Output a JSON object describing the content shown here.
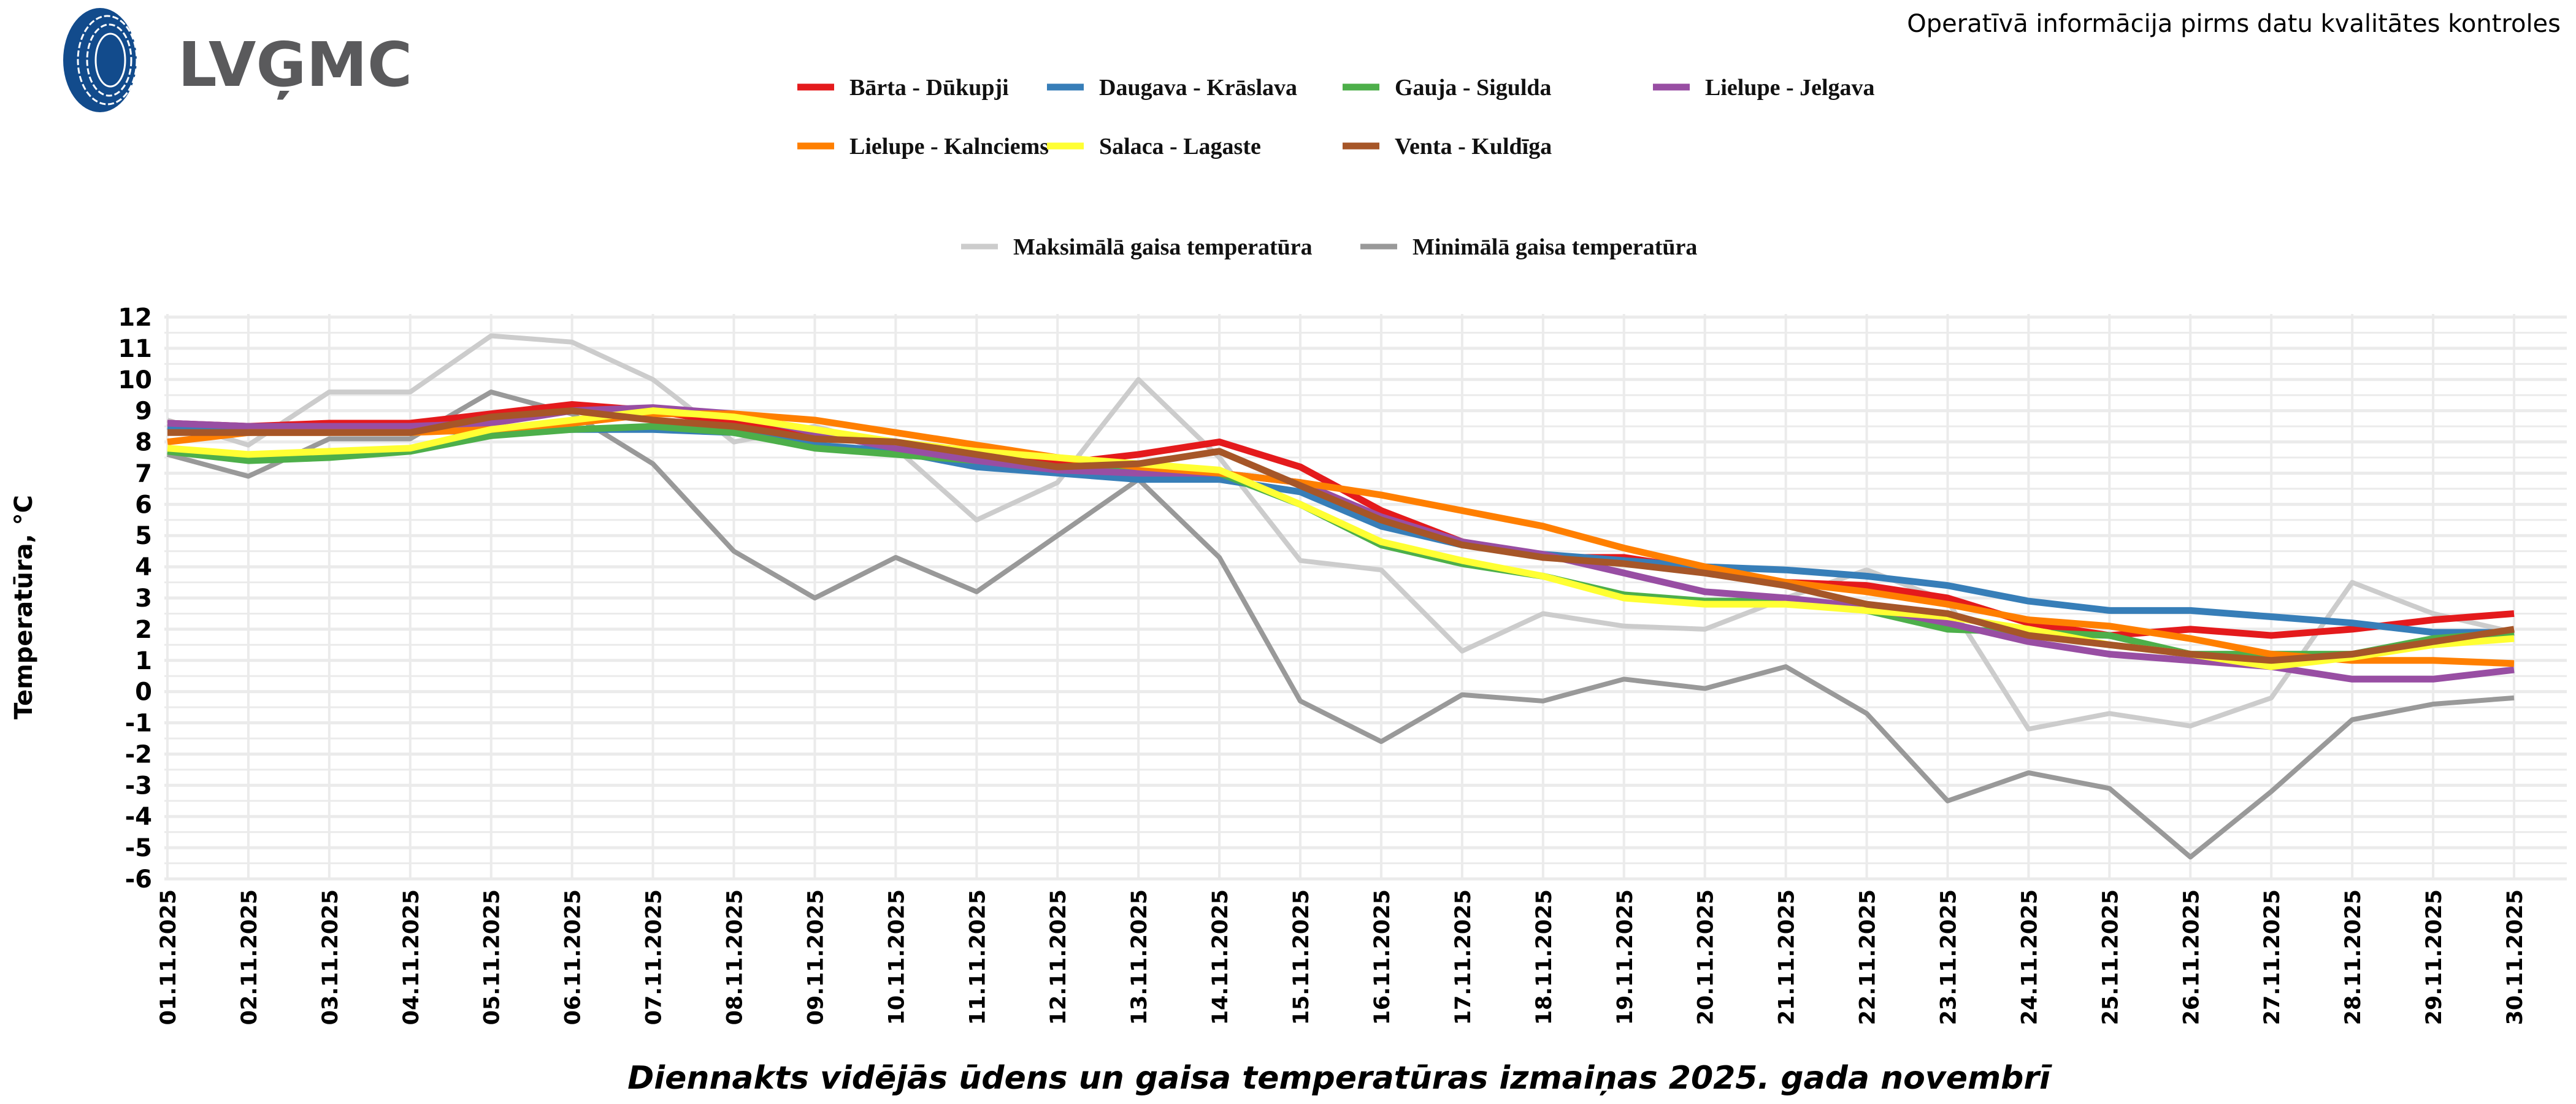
{
  "header": {
    "logo_text": "LVĢMC",
    "note": "Operatīvā informācija pirms datu kvalitātes kontroles"
  },
  "chart_data": {
    "type": "line",
    "title": "Diennakts vidējās ūdens un gaisa temperatūras izmaiņas 2025. gada novembrī",
    "xlabel": "",
    "ylabel": "Temperatūra, °C",
    "ylim": [
      -6,
      12
    ],
    "yticks": [
      "-6",
      "-5",
      "-4",
      "-3",
      "-2",
      "-1",
      "0",
      "1",
      "2",
      "3",
      "4",
      "5",
      "6",
      "7",
      "8",
      "9",
      "10",
      "11",
      "12"
    ],
    "grid": true,
    "legend_placement": "top",
    "categories": [
      "01.11.2025",
      "02.11.2025",
      "03.11.2025",
      "04.11.2025",
      "05.11.2025",
      "06.11.2025",
      "07.11.2025",
      "08.11.2025",
      "09.11.2025",
      "10.11.2025",
      "11.11.2025",
      "12.11.2025",
      "13.11.2025",
      "14.11.2025",
      "15.11.2025",
      "16.11.2025",
      "17.11.2025",
      "18.11.2025",
      "19.11.2025",
      "20.11.2025",
      "21.11.2025",
      "22.11.2025",
      "23.11.2025",
      "24.11.2025",
      "25.11.2025",
      "26.11.2025",
      "27.11.2025",
      "28.11.2025",
      "29.11.2025",
      "30.11.2025"
    ],
    "air_series": [
      {
        "name": "Maksimālā gaisa temperatūra",
        "color": "#cccccc",
        "values": [
          8.7,
          7.9,
          9.6,
          9.6,
          11.4,
          11.2,
          10.0,
          8.0,
          8.5,
          7.8,
          5.5,
          6.7,
          10.0,
          7.5,
          4.2,
          3.9,
          1.3,
          2.5,
          2.1,
          2.0,
          3.0,
          3.9,
          2.9,
          -1.2,
          -0.7,
          -1.1,
          -0.2,
          3.5,
          2.5,
          1.9
        ]
      },
      {
        "name": "Minimālā gaisa temperatūra",
        "color": "#999999",
        "values": [
          7.6,
          6.9,
          8.1,
          8.1,
          9.6,
          8.9,
          7.3,
          4.5,
          3.0,
          4.3,
          3.2,
          5.0,
          6.8,
          4.3,
          -0.3,
          -1.6,
          -0.1,
          -0.3,
          0.4,
          0.1,
          0.8,
          -0.7,
          -3.5,
          -2.6,
          -3.1,
          -5.3,
          -3.2,
          -0.9,
          -0.4,
          -0.2
        ]
      }
    ],
    "series": [
      {
        "name": "Bārta - Dūkupji",
        "color": "#e41a1c",
        "values": [
          8.6,
          8.5,
          8.6,
          8.6,
          8.9,
          9.2,
          9.0,
          8.6,
          8.2,
          7.9,
          7.6,
          7.3,
          7.6,
          8.0,
          7.2,
          5.8,
          4.8,
          4.3,
          4.3,
          3.9,
          3.5,
          3.4,
          3.0,
          2.2,
          1.8,
          2.0,
          1.8,
          2.0,
          2.3,
          2.5
        ]
      },
      {
        "name": "Daugava - Krāslava",
        "color": "#377eb8",
        "values": [
          8.5,
          8.3,
          8.4,
          8.4,
          8.3,
          8.4,
          8.4,
          8.3,
          7.9,
          7.7,
          7.2,
          7.0,
          6.8,
          6.8,
          6.4,
          5.3,
          4.7,
          4.4,
          4.2,
          4.0,
          3.9,
          3.7,
          3.4,
          2.9,
          2.6,
          2.6,
          2.4,
          2.2,
          1.9,
          1.9
        ]
      },
      {
        "name": "Gauja - Sigulda",
        "color": "#4daf4a",
        "values": [
          7.7,
          7.4,
          7.5,
          7.7,
          8.2,
          8.4,
          8.5,
          8.3,
          7.8,
          7.6,
          7.4,
          7.2,
          7.2,
          7.0,
          6.0,
          4.7,
          4.1,
          3.7,
          3.1,
          2.9,
          2.9,
          2.6,
          2.0,
          1.9,
          1.8,
          1.2,
          1.2,
          1.2,
          1.7,
          1.9
        ]
      },
      {
        "name": "Lielupe - Jelgava",
        "color": "#984ea3",
        "values": [
          8.6,
          8.5,
          8.5,
          8.5,
          8.6,
          9.0,
          9.1,
          8.9,
          8.3,
          7.8,
          7.4,
          7.1,
          7.0,
          7.0,
          6.7,
          5.6,
          4.8,
          4.4,
          3.8,
          3.2,
          3.0,
          2.7,
          2.2,
          1.6,
          1.2,
          1.0,
          0.8,
          0.4,
          0.4,
          0.7
        ]
      },
      {
        "name": "Lielupe - Kalnciems",
        "color": "#ff7f00",
        "values": [
          8.0,
          8.3,
          8.3,
          8.3,
          8.4,
          8.6,
          8.9,
          8.9,
          8.7,
          8.3,
          7.9,
          7.5,
          7.2,
          7.0,
          6.7,
          6.3,
          5.8,
          5.3,
          4.6,
          4.0,
          3.5,
          3.2,
          2.8,
          2.3,
          2.1,
          1.7,
          1.2,
          1.0,
          1.0,
          0.9
        ]
      },
      {
        "name": "Salaca - Lagaste",
        "color": "#ffff33",
        "values": [
          7.8,
          7.6,
          7.7,
          7.8,
          8.4,
          8.7,
          9.0,
          8.8,
          8.4,
          8.0,
          7.7,
          7.5,
          7.3,
          7.1,
          6.0,
          4.8,
          4.2,
          3.7,
          3.0,
          2.8,
          2.8,
          2.6,
          2.4,
          2.0,
          1.5,
          1.2,
          0.8,
          1.1,
          1.5,
          1.7
        ]
      },
      {
        "name": "Venta - Kuldīga",
        "color": "#a65628",
        "values": [
          8.3,
          8.3,
          8.3,
          8.3,
          8.8,
          9.0,
          8.7,
          8.5,
          8.1,
          8.0,
          7.6,
          7.2,
          7.3,
          7.7,
          6.6,
          5.5,
          4.7,
          4.3,
          4.1,
          3.8,
          3.4,
          2.8,
          2.5,
          1.8,
          1.5,
          1.2,
          1.0,
          1.2,
          1.6,
          2.0
        ]
      }
    ]
  }
}
